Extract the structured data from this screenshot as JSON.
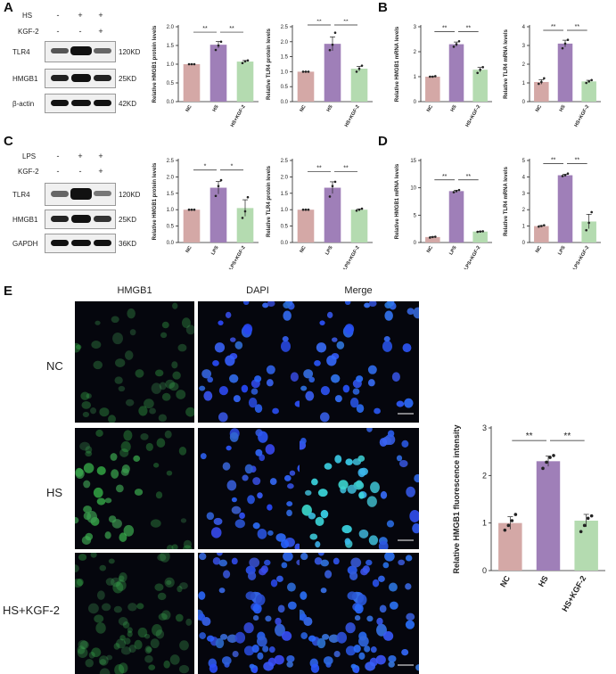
{
  "panels": {
    "A": "A",
    "B": "B",
    "C": "C",
    "D": "D",
    "E": "E"
  },
  "blotA": {
    "conditions": [
      "HS",
      "KGF-2"
    ],
    "signs": [
      [
        "-",
        "+",
        "+"
      ],
      [
        "-",
        "-",
        "+"
      ]
    ],
    "proteins": [
      "TLR4",
      "HMGB1",
      "β-actin"
    ],
    "weights": [
      "120KD",
      "25KD",
      "42KD"
    ]
  },
  "blotC": {
    "conditions": [
      "LPS",
      "KGF-2"
    ],
    "signs": [
      [
        "-",
        "+",
        "+"
      ],
      [
        "-",
        "-",
        "+"
      ]
    ],
    "proteins": [
      "TLR4",
      "HMGB1",
      "GAPDH"
    ],
    "weights": [
      "120KD",
      "25KD",
      "36KD"
    ]
  },
  "colors": {
    "nc": "#d4a8a6",
    "treat": "#9f7fb8",
    "kgf": "#b4dbb0",
    "text": "#222222"
  },
  "chart_data": [
    {
      "id": "A1",
      "type": "bar",
      "categories": [
        "NC",
        "HS",
        "HS+KGF-2"
      ],
      "values": [
        1.0,
        1.52,
        1.07
      ],
      "ylabel": "Relative HMGB1 protein levels",
      "ylim": [
        0,
        2.0
      ],
      "ticks": [
        "0.0",
        "0.5",
        "1.0",
        "1.5",
        "2.0"
      ],
      "points": [
        [
          1.0,
          1.0,
          1.0
        ],
        [
          1.38,
          1.5,
          1.6
        ],
        [
          1.03,
          1.08,
          1.1
        ]
      ],
      "sig": [
        {
          "from": 0,
          "to": 1,
          "label": "**"
        },
        {
          "from": 1,
          "to": 2,
          "label": "**"
        }
      ]
    },
    {
      "id": "A2",
      "type": "bar",
      "categories": [
        "NC",
        "HS",
        "HS+KGF-2"
      ],
      "values": [
        1.0,
        1.93,
        1.1
      ],
      "ylabel": "Relative TLR4 protein levels",
      "ylim": [
        0,
        2.5
      ],
      "ticks": [
        "0.0",
        "0.5",
        "1.0",
        "1.5",
        "2.0",
        "2.5"
      ],
      "points": [
        [
          1.0,
          1.0,
          1.0
        ],
        [
          1.72,
          1.9,
          2.3
        ],
        [
          1.0,
          1.1,
          1.2
        ]
      ],
      "sig": [
        {
          "from": 0,
          "to": 1,
          "label": "**"
        },
        {
          "from": 1,
          "to": 2,
          "label": "**"
        }
      ]
    },
    {
      "id": "B1",
      "type": "bar",
      "categories": [
        "NC",
        "HS",
        "HS+KGF-2"
      ],
      "values": [
        1.0,
        2.3,
        1.28
      ],
      "ylabel": "Relative HMGB1 mRNA levels",
      "ylim": [
        0,
        3
      ],
      "ticks": [
        "0",
        "1",
        "2",
        "3"
      ],
      "points": [
        [
          1.0,
          1.0,
          1.02
        ],
        [
          2.2,
          2.3,
          2.42
        ],
        [
          1.15,
          1.28,
          1.38
        ]
      ],
      "sig": [
        {
          "from": 0,
          "to": 1,
          "label": "**"
        },
        {
          "from": 1,
          "to": 2,
          "label": "**"
        }
      ]
    },
    {
      "id": "B2",
      "type": "bar",
      "categories": [
        "NC",
        "HS",
        "HS+KGF-2"
      ],
      "values": [
        1.05,
        3.1,
        1.08
      ],
      "ylabel": "Relative TLR4 mRNA levels",
      "ylim": [
        0,
        4
      ],
      "ticks": [
        "0",
        "1",
        "2",
        "3",
        "4"
      ],
      "points": [
        [
          0.95,
          1.05,
          1.25
        ],
        [
          2.85,
          3.1,
          3.3
        ],
        [
          1.0,
          1.08,
          1.15
        ]
      ],
      "sig": [
        {
          "from": 0,
          "to": 1,
          "label": "**"
        },
        {
          "from": 1,
          "to": 2,
          "label": "**"
        }
      ]
    },
    {
      "id": "C1",
      "type": "bar",
      "categories": [
        "NC",
        "LPS",
        "LPS+KGF-2"
      ],
      "values": [
        1.0,
        1.67,
        1.05
      ],
      "ylabel": "Relative HMGB1 protein levels",
      "ylim": [
        0,
        2.5
      ],
      "ticks": [
        "0.0",
        "0.5",
        "1.0",
        "1.5",
        "2.0",
        "2.5"
      ],
      "points": [
        [
          1.0,
          1.0,
          1.0
        ],
        [
          1.42,
          1.72,
          1.9
        ],
        [
          0.75,
          0.95,
          1.38
        ]
      ],
      "sig": [
        {
          "from": 0,
          "to": 1,
          "label": "*"
        },
        {
          "from": 1,
          "to": 2,
          "label": "*"
        }
      ]
    },
    {
      "id": "C2",
      "type": "bar",
      "categories": [
        "NC",
        "LPS",
        "LPS+KGF-2"
      ],
      "values": [
        1.0,
        1.67,
        1.0
      ],
      "ylabel": "Relative TLR4 protein levels",
      "ylim": [
        0,
        2.5
      ],
      "ticks": [
        "0.0",
        "0.5",
        "1.0",
        "1.5",
        "2.0",
        "2.5"
      ],
      "points": [
        [
          1.0,
          1.0,
          1.0
        ],
        [
          1.4,
          1.72,
          1.85
        ],
        [
          0.97,
          1.0,
          1.03
        ]
      ],
      "sig": [
        {
          "from": 0,
          "to": 1,
          "label": "**"
        },
        {
          "from": 1,
          "to": 2,
          "label": "**"
        }
      ]
    },
    {
      "id": "D1",
      "type": "bar",
      "categories": [
        "NC",
        "LPS",
        "LPS+KGF-2"
      ],
      "values": [
        1.0,
        9.4,
        2.0
      ],
      "ylabel": "Relative HMGB1 mRNA levels",
      "ylim": [
        0,
        15
      ],
      "ticks": [
        "0",
        "5",
        "10",
        "15"
      ],
      "points": [
        [
          0.9,
          1.0,
          1.05
        ],
        [
          9.2,
          9.4,
          9.6
        ],
        [
          1.95,
          2.0,
          2.05
        ]
      ],
      "sig": [
        {
          "from": 0,
          "to": 1,
          "label": "**"
        },
        {
          "from": 1,
          "to": 2,
          "label": "**"
        }
      ]
    },
    {
      "id": "D2",
      "type": "bar",
      "categories": [
        "NC",
        "LPS",
        "LPS+KGF-2"
      ],
      "values": [
        1.0,
        4.1,
        1.28
      ],
      "ylabel": "Relative TLR4 mRNA levels",
      "ylim": [
        0,
        5
      ],
      "ticks": [
        "0",
        "1",
        "2",
        "3",
        "4",
        "5"
      ],
      "points": [
        [
          0.97,
          1.0,
          1.05
        ],
        [
          4.05,
          4.1,
          4.2
        ],
        [
          0.75,
          1.2,
          1.85
        ]
      ],
      "sig": [
        {
          "from": 0,
          "to": 1,
          "label": "**"
        },
        {
          "from": 1,
          "to": 2,
          "label": "**"
        }
      ]
    },
    {
      "id": "E1",
      "type": "bar",
      "categories": [
        "NC",
        "HS",
        "HS+KGF-2"
      ],
      "values": [
        1.0,
        2.3,
        1.05
      ],
      "ylabel": "Relative HMGB1 fluorescence intensity",
      "ylim": [
        0,
        3
      ],
      "ticks": [
        "0",
        "1",
        "2",
        "3"
      ],
      "points": [
        [
          0.85,
          0.95,
          1.05,
          1.18
        ],
        [
          2.15,
          2.28,
          2.38,
          2.42
        ],
        [
          0.82,
          0.95,
          1.1,
          1.15
        ]
      ],
      "sig": [
        {
          "from": 0,
          "to": 1,
          "label": "**"
        },
        {
          "from": 1,
          "to": 2,
          "label": "**"
        }
      ]
    }
  ],
  "fluorescence": {
    "columns": [
      "HMGB1",
      "DAPI",
      "Merge"
    ],
    "rows": [
      "NC",
      "HS",
      "HS+KGF-2"
    ]
  }
}
